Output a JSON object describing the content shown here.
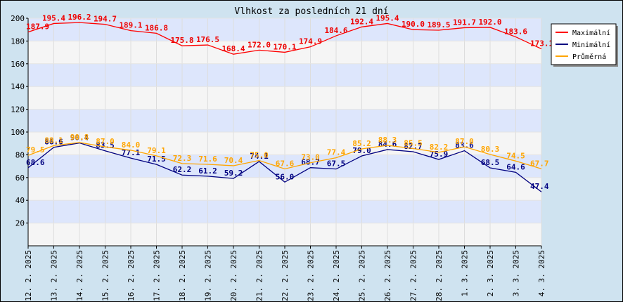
{
  "chart_data": {
    "type": "line",
    "title": "Vlhkost za posledních 21 dní",
    "xlabel": "",
    "ylabel": "",
    "ylim": [
      0,
      200
    ],
    "yticks": [
      20,
      40,
      60,
      80,
      100,
      120,
      140,
      160,
      180,
      200
    ],
    "grid": true,
    "legend_position": "top-right",
    "categories": [
      "12. 2. 2025",
      "13. 2. 2025",
      "14. 2. 2025",
      "15. 2. 2025",
      "16. 2. 2025",
      "17. 2. 2025",
      "18. 2. 2025",
      "19. 2. 2025",
      "20. 2. 2025",
      "21. 2. 2025",
      "22. 2. 2025",
      "23. 2. 2025",
      "24. 2. 2025",
      "25. 2. 2025",
      "26. 2. 2025",
      "27. 2. 2025",
      "28. 2. 2025",
      "1. 3. 2025",
      "2. 3. 2025",
      "3. 3. 2025",
      "4. 3. 2025"
    ],
    "series": [
      {
        "name": "Maximální",
        "color": "#ff0000",
        "label_color": "#ee0000",
        "labels": [
          "187.9",
          "195.4",
          "196.2",
          "194.7",
          "189.1",
          "186.8",
          "175.8",
          "176.5",
          "168.4",
          "172.0",
          "170.1",
          "174.9",
          "184.6",
          "192.4",
          "195.4",
          "190.0",
          "189.5",
          "191.7",
          "192.0",
          "183.6",
          "173.1"
        ],
        "values": [
          187.9,
          195.4,
          196.2,
          194.7,
          189.1,
          186.8,
          175.8,
          176.5,
          168.4,
          172.0,
          170.1,
          174.9,
          184.6,
          192.4,
          195.4,
          190.0,
          189.5,
          191.7,
          192.0,
          183.6,
          173.1
        ]
      },
      {
        "name": "Minimální",
        "color": "#000080",
        "label_color": "#000080",
        "labels": [
          "68.6",
          "86.6",
          "90.4",
          "83.5",
          "77.1",
          "71.5",
          "62.2",
          "61.2",
          "59.2",
          "74.1",
          "56.0",
          "68.7",
          "67.5",
          "79.0",
          "84.6",
          "82.7",
          "75.9",
          "83.6",
          "68.5",
          "64.6",
          "47.4"
        ],
        "values": [
          68.6,
          86.6,
          90.4,
          83.5,
          77.1,
          71.5,
          62.2,
          61.2,
          59.2,
          74.1,
          56.0,
          68.7,
          67.5,
          79.0,
          84.6,
          82.7,
          75.9,
          83.6,
          68.5,
          64.6,
          47.4
        ]
      },
      {
        "name": "Průměrná",
        "color": "#ffa500",
        "label_color": "#ffa500",
        "labels": [
          "79.5",
          "88.1",
          "90.8",
          "87.0",
          "84.0",
          "79.1",
          "72.3",
          "71.6",
          "70.4",
          "75.0",
          "67.6",
          "73.0",
          "77.4",
          "85.2",
          "88.3",
          "85.5",
          "82.2",
          "87.0",
          "80.3",
          "74.5",
          "67.7"
        ],
        "values": [
          79.5,
          88.1,
          90.8,
          87.0,
          84.0,
          79.1,
          72.3,
          71.6,
          70.4,
          75.0,
          67.6,
          73.0,
          77.4,
          85.2,
          88.3,
          85.5,
          82.2,
          87.0,
          80.3,
          74.5,
          67.7
        ]
      }
    ]
  }
}
